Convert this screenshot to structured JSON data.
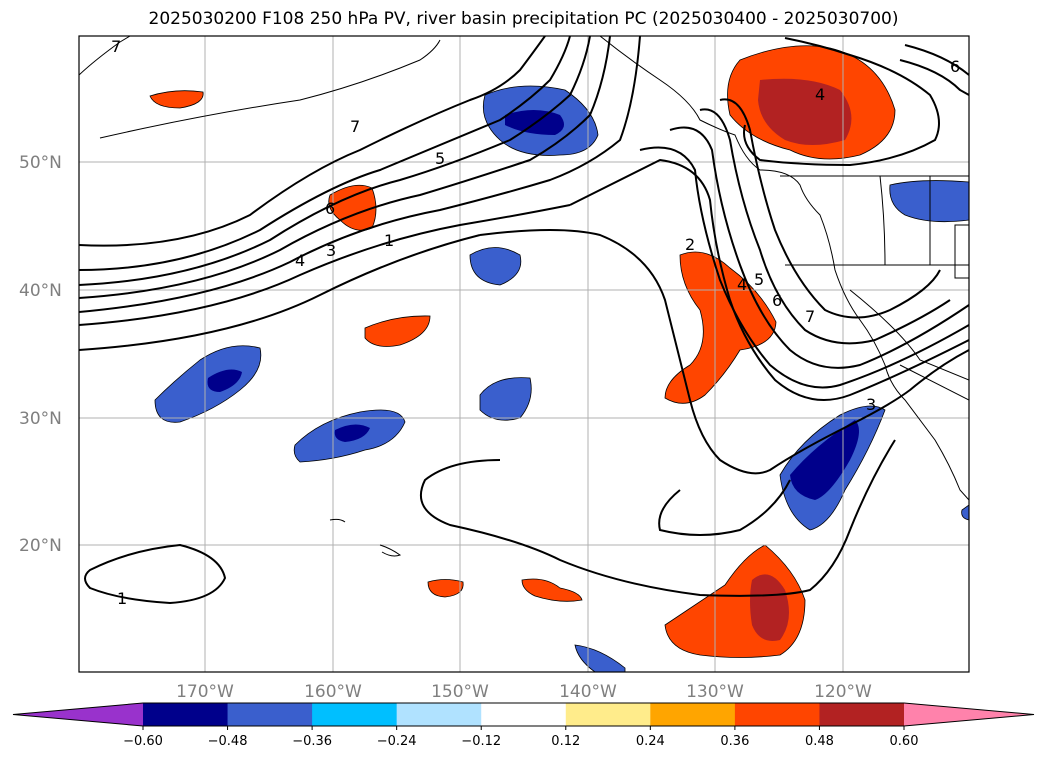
{
  "title": "2025030200 F108 250 hPa PV, river basin precipitation PC (2025030400 - 2025030700)",
  "lat_labels": [
    "50°N",
    "40°N",
    "30°N",
    "20°N"
  ],
  "lon_labels": [
    "170°W",
    "160°W",
    "150°W",
    "140°W",
    "130°W",
    "120°W"
  ],
  "colorbar": {
    "ticks": [
      "−0.60",
      "−0.48",
      "−0.36",
      "−0.24",
      "−0.12",
      "0.12",
      "0.24",
      "0.36",
      "0.48",
      "0.60"
    ],
    "colors": [
      "#9932CC",
      "#00008B",
      "#3A5FCD",
      "#00BFFF",
      "#B0E2FF",
      "#FFFFFF",
      "#FFEC8B",
      "#FFA500",
      "#FF4500",
      "#B22222",
      "#FF82AB"
    ]
  },
  "pv_contour_labels": [
    "7",
    "7",
    "5",
    "6",
    "4",
    "3",
    "1",
    "2",
    "4",
    "5",
    "6",
    "7",
    "4",
    "6",
    "3",
    "1"
  ]
}
